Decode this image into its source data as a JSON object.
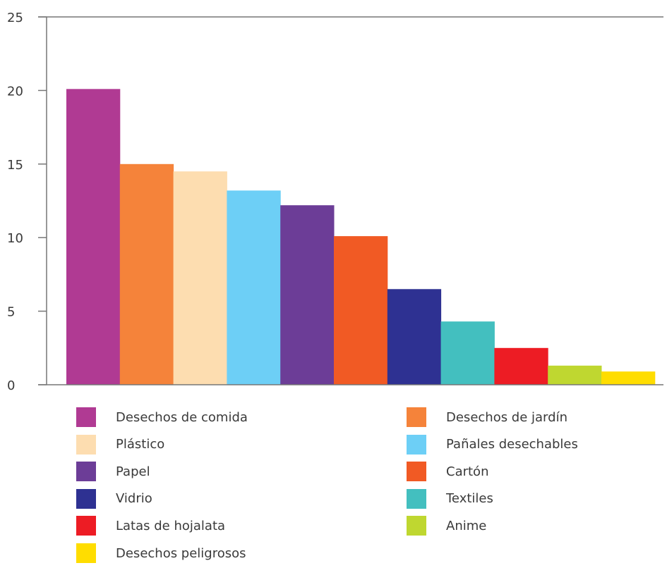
{
  "chart_data": {
    "type": "bar",
    "title": "",
    "xlabel": "",
    "ylabel": "",
    "ylim": [
      0,
      25
    ],
    "yticks": [
      0,
      5,
      10,
      15,
      20,
      25
    ],
    "grid": false,
    "legend_position": "bottom",
    "categories": [
      "Desechos de comida",
      "Desechos de jardín",
      "Plástico",
      "Pañales desechables",
      "Papel",
      "Cartón",
      "Vidrio",
      "Textiles",
      "Latas de hojalata",
      "Anime",
      "Desechos peligrosos"
    ],
    "values": [
      20.1,
      15.0,
      14.5,
      13.2,
      12.2,
      10.1,
      6.5,
      4.3,
      2.5,
      1.3,
      0.9
    ],
    "colors": [
      "#B03A93",
      "#F5833A",
      "#FDDDB0",
      "#6DCFF6",
      "#6C3D97",
      "#F15A24",
      "#2E3192",
      "#43BFBF",
      "#ED1C24",
      "#BFD730",
      "#FFDD00"
    ]
  }
}
